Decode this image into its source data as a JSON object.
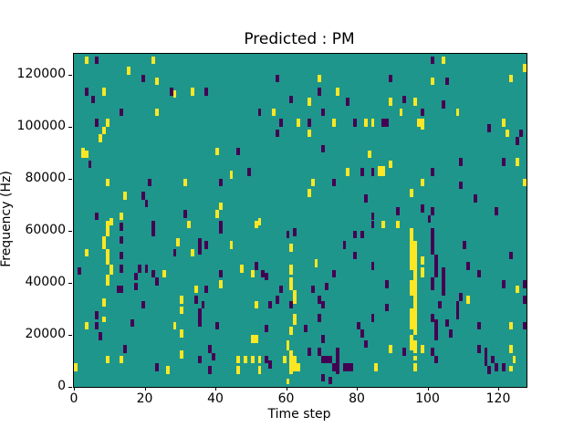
{
  "chart_data": {
    "type": "heatmap",
    "title": "Predicted : PM",
    "xlabel": "Time step",
    "ylabel": "Frequency (Hz)",
    "xlim": [
      0,
      128
    ],
    "ylim": [
      0,
      128000
    ],
    "grid": false,
    "legend": "none",
    "xtick_values": [
      0,
      20,
      40,
      60,
      80,
      100,
      120
    ],
    "xtick_labels": [
      "0",
      "20",
      "40",
      "60",
      "80",
      "100",
      "120"
    ],
    "ytick_values": [
      0,
      20000,
      40000,
      60000,
      80000,
      100000,
      120000
    ],
    "ytick_labels": [
      "0",
      "20000",
      "40000",
      "60000",
      "80000",
      "100000",
      "120000"
    ],
    "colors": {
      "background_value": "#1f968b",
      "high_value": "#fde725",
      "low_value": "#440154"
    },
    "cell_note": "cells are [time_step, freq_kHz_top, value(1=yellow,0=purple), rows(optional, default 3, 1 row = 1 kHz)]",
    "cells": [
      [
        3,
        127,
        1
      ],
      [
        6,
        127,
        0
      ],
      [
        22,
        127,
        1
      ],
      [
        15,
        123,
        1
      ],
      [
        19,
        120,
        0
      ],
      [
        23,
        119,
        1
      ],
      [
        3,
        115,
        0
      ],
      [
        8,
        115,
        1
      ],
      [
        27,
        115,
        0
      ],
      [
        28,
        114,
        1
      ],
      [
        5,
        112,
        0
      ],
      [
        13,
        107,
        0
      ],
      [
        23,
        107,
        1
      ],
      [
        6,
        103,
        0
      ],
      [
        9,
        103,
        1
      ],
      [
        8,
        100,
        1
      ],
      [
        7,
        97,
        1
      ],
      [
        2,
        92,
        1,
        4
      ],
      [
        3,
        91,
        1
      ],
      [
        4,
        87,
        0
      ],
      [
        9,
        80,
        1
      ],
      [
        21,
        80,
        0
      ],
      [
        31,
        80,
        1
      ],
      [
        14,
        75,
        1
      ],
      [
        19,
        75,
        0
      ],
      [
        20,
        72,
        0
      ],
      [
        6,
        67,
        0
      ],
      [
        13,
        67,
        1
      ],
      [
        31,
        68,
        0
      ],
      [
        10,
        65,
        1
      ],
      [
        57,
        120,
        0
      ],
      [
        33,
        115,
        1
      ],
      [
        37,
        115,
        0
      ],
      [
        61,
        112,
        0
      ],
      [
        52,
        107,
        0
      ],
      [
        56,
        107,
        1
      ],
      [
        63,
        103,
        1
      ],
      [
        58,
        103,
        0
      ],
      [
        57,
        99,
        0
      ],
      [
        40,
        92,
        1
      ],
      [
        46,
        92,
        0
      ],
      [
        44,
        83,
        1
      ],
      [
        49,
        84,
        0
      ],
      [
        41,
        80,
        0
      ],
      [
        41,
        71,
        1
      ],
      [
        40,
        68,
        1
      ],
      [
        52,
        65,
        1
      ],
      [
        69,
        120,
        1
      ],
      [
        89,
        120,
        0
      ],
      [
        69,
        115,
        0
      ],
      [
        74,
        115,
        1
      ],
      [
        66,
        111,
        1
      ],
      [
        77,
        111,
        0
      ],
      [
        89,
        111,
        1
      ],
      [
        93,
        112,
        0
      ],
      [
        96,
        111,
        1
      ],
      [
        70,
        107,
        0
      ],
      [
        92,
        107,
        1
      ],
      [
        66,
        103,
        0
      ],
      [
        73,
        103,
        1
      ],
      [
        79,
        103,
        0
      ],
      [
        82,
        103,
        1
      ],
      [
        84,
        103,
        1
      ],
      [
        87,
        103,
        0
      ],
      [
        88,
        103,
        0
      ],
      [
        97,
        103,
        1
      ],
      [
        66,
        99,
        1
      ],
      [
        70,
        93,
        0
      ],
      [
        83,
        91,
        1
      ],
      [
        89,
        87,
        1
      ],
      [
        77,
        84,
        1
      ],
      [
        81,
        84,
        0
      ],
      [
        84,
        84,
        0
      ],
      [
        86,
        85,
        1,
        4
      ],
      [
        87,
        85,
        1,
        4
      ],
      [
        67,
        80,
        1
      ],
      [
        73,
        80,
        0
      ],
      [
        66,
        76,
        1
      ],
      [
        82,
        74,
        0
      ],
      [
        91,
        69,
        0
      ],
      [
        95,
        76,
        1
      ],
      [
        84,
        67,
        0
      ],
      [
        87,
        64,
        1
      ],
      [
        101,
        127,
        0
      ],
      [
        104,
        127,
        1
      ],
      [
        127,
        124,
        1
      ],
      [
        101,
        119,
        1
      ],
      [
        105,
        119,
        0
      ],
      [
        123,
        120,
        1
      ],
      [
        104,
        110,
        0
      ],
      [
        98,
        107,
        0
      ],
      [
        98,
        103,
        1,
        4
      ],
      [
        108,
        107,
        1
      ],
      [
        117,
        101,
        0
      ],
      [
        121,
        103,
        1
      ],
      [
        122,
        99,
        1
      ],
      [
        126,
        99,
        0
      ],
      [
        125,
        96,
        0
      ],
      [
        109,
        88,
        0
      ],
      [
        121,
        88,
        0
      ],
      [
        125,
        88,
        1
      ],
      [
        101,
        84,
        0
      ],
      [
        98,
        80,
        1,
        3
      ],
      [
        127,
        80,
        1
      ],
      [
        109,
        79,
        0
      ],
      [
        113,
        74,
        0
      ],
      [
        98,
        70,
        0
      ],
      [
        101,
        69,
        0
      ],
      [
        119,
        69,
        0
      ],
      [
        100,
        66,
        0
      ],
      [
        9,
        64,
        1,
        6
      ],
      [
        8,
        58,
        1,
        5
      ],
      [
        9,
        53,
        1,
        6
      ],
      [
        10,
        47,
        1,
        4
      ],
      [
        9,
        43,
        1,
        4
      ],
      [
        8,
        34,
        1,
        3
      ],
      [
        8,
        27,
        1,
        2
      ],
      [
        9,
        12,
        1
      ],
      [
        22,
        64,
        0,
        6
      ],
      [
        13,
        63,
        0,
        3
      ],
      [
        13,
        58,
        0,
        3
      ],
      [
        13,
        52,
        0,
        3
      ],
      [
        13,
        47,
        0,
        3
      ],
      [
        3,
        53,
        1
      ],
      [
        1,
        46,
        0
      ],
      [
        18,
        47,
        0
      ],
      [
        20,
        47,
        0
      ],
      [
        17,
        44,
        0,
        3
      ],
      [
        17,
        40,
        0,
        3
      ],
      [
        22,
        45,
        0
      ],
      [
        25,
        45,
        1
      ],
      [
        23,
        42,
        0
      ],
      [
        12,
        39,
        0
      ],
      [
        13,
        39,
        0
      ],
      [
        6,
        29,
        0
      ],
      [
        6,
        25,
        0
      ],
      [
        3,
        25,
        1
      ],
      [
        7,
        21,
        0
      ],
      [
        19,
        33,
        0
      ],
      [
        16,
        26,
        0
      ],
      [
        14,
        16,
        0
      ],
      [
        13,
        12,
        1
      ],
      [
        0,
        9,
        1
      ],
      [
        23,
        9,
        0
      ],
      [
        26,
        8,
        1
      ],
      [
        30,
        14,
        1
      ],
      [
        28,
        25,
        1
      ],
      [
        30,
        22,
        1
      ],
      [
        30,
        35,
        1
      ],
      [
        30,
        31,
        1
      ],
      [
        29,
        57,
        1
      ],
      [
        28,
        53,
        0
      ],
      [
        32,
        64,
        1
      ],
      [
        41,
        64,
        0,
        5
      ],
      [
        51,
        64,
        1
      ],
      [
        35,
        57,
        0,
        6
      ],
      [
        37,
        56,
        0
      ],
      [
        33,
        53,
        1
      ],
      [
        44,
        56,
        1
      ],
      [
        60,
        60,
        0
      ],
      [
        62,
        61,
        0
      ],
      [
        61,
        55,
        1
      ],
      [
        47,
        47,
        1
      ],
      [
        51,
        48,
        0
      ],
      [
        50,
        45,
        1
      ],
      [
        53,
        45,
        0
      ],
      [
        54,
        44,
        0
      ],
      [
        41,
        45,
        0
      ],
      [
        41,
        41,
        1
      ],
      [
        34,
        39,
        1
      ],
      [
        37,
        39,
        0
      ],
      [
        58,
        39,
        0
      ],
      [
        57,
        35,
        0
      ],
      [
        34,
        35,
        0
      ],
      [
        36,
        33,
        0
      ],
      [
        51,
        33,
        1
      ],
      [
        55,
        33,
        0
      ],
      [
        35,
        30,
        0,
        7
      ],
      [
        40,
        25,
        0
      ],
      [
        54,
        24,
        0
      ],
      [
        50,
        20,
        1
      ],
      [
        51,
        20,
        1
      ],
      [
        38,
        16,
        0
      ],
      [
        39,
        13,
        0
      ],
      [
        35,
        12,
        0
      ],
      [
        38,
        8,
        0
      ],
      [
        46,
        12,
        1
      ],
      [
        46,
        8,
        1
      ],
      [
        48,
        12,
        1
      ],
      [
        50,
        12,
        1
      ],
      [
        52,
        12,
        1
      ],
      [
        52,
        8,
        1
      ],
      [
        54,
        12,
        0
      ],
      [
        55,
        10,
        0
      ],
      [
        61,
        47,
        1,
        4
      ],
      [
        61,
        42,
        1,
        5
      ],
      [
        62,
        37,
        1,
        5
      ],
      [
        61,
        33,
        0
      ],
      [
        62,
        28,
        1,
        4
      ],
      [
        61,
        23,
        1,
        3
      ],
      [
        60,
        18,
        1,
        4
      ],
      [
        61,
        14,
        1,
        9
      ],
      [
        62,
        12,
        1,
        6
      ],
      [
        59,
        12,
        1,
        3
      ],
      [
        60,
        3,
        1,
        2
      ],
      [
        63,
        9,
        1
      ],
      [
        95,
        61,
        1,
        8
      ],
      [
        96,
        56,
        1,
        10
      ],
      [
        95,
        53,
        1,
        8
      ],
      [
        96,
        46,
        1,
        8
      ],
      [
        95,
        41,
        1,
        6
      ],
      [
        96,
        38,
        1,
        10
      ],
      [
        95,
        30,
        1,
        8
      ],
      [
        96,
        28,
        1,
        8
      ],
      [
        95,
        20,
        1,
        6
      ],
      [
        96,
        18,
        1,
        5
      ],
      [
        96,
        12,
        1,
        2
      ],
      [
        96,
        9,
        1
      ],
      [
        91,
        64,
        1,
        3
      ],
      [
        84,
        64,
        0
      ],
      [
        79,
        60,
        0
      ],
      [
        81,
        60,
        0
      ],
      [
        76,
        56,
        0
      ],
      [
        79,
        52,
        0
      ],
      [
        84,
        48,
        0
      ],
      [
        68,
        49,
        1
      ],
      [
        73,
        45,
        0
      ],
      [
        67,
        39,
        0
      ],
      [
        71,
        40,
        0
      ],
      [
        69,
        35,
        0
      ],
      [
        70,
        33,
        0
      ],
      [
        88,
        41,
        0
      ],
      [
        88,
        32,
        0
      ],
      [
        69,
        28,
        0
      ],
      [
        84,
        28,
        0
      ],
      [
        65,
        24,
        0
      ],
      [
        70,
        20,
        0
      ],
      [
        80,
        25,
        0
      ],
      [
        81,
        22,
        0
      ],
      [
        82,
        18,
        0
      ],
      [
        66,
        15,
        0
      ],
      [
        69,
        15,
        0
      ],
      [
        70,
        12,
        0
      ],
      [
        71,
        12,
        0
      ],
      [
        72,
        12,
        0
      ],
      [
        74,
        15,
        0
      ],
      [
        74,
        13,
        0,
        8
      ],
      [
        73,
        9,
        0
      ],
      [
        76,
        9,
        0
      ],
      [
        77,
        9,
        0
      ],
      [
        78,
        9,
        0
      ],
      [
        70,
        5,
        0
      ],
      [
        72,
        4,
        0
      ],
      [
        85,
        9,
        1
      ],
      [
        89,
        16,
        1
      ],
      [
        93,
        15,
        0
      ],
      [
        101,
        61,
        0,
        5
      ],
      [
        101,
        56,
        0,
        5
      ],
      [
        102,
        51,
        0,
        5
      ],
      [
        102,
        46,
        0,
        4
      ],
      [
        101,
        42,
        0,
        5
      ],
      [
        104,
        46,
        0,
        4
      ],
      [
        104,
        42,
        0,
        5
      ],
      [
        104,
        37,
        0,
        2
      ],
      [
        98,
        50,
        1,
        3
      ],
      [
        98,
        46,
        1,
        4
      ],
      [
        110,
        56,
        0
      ],
      [
        111,
        48,
        0
      ],
      [
        114,
        45,
        0
      ],
      [
        123,
        52,
        0
      ],
      [
        121,
        41,
        0
      ],
      [
        125,
        39,
        1
      ],
      [
        127,
        41,
        0
      ],
      [
        127,
        35,
        0
      ],
      [
        111,
        35,
        1
      ],
      [
        109,
        36,
        0
      ],
      [
        103,
        33,
        0
      ],
      [
        108,
        33,
        0,
        7
      ],
      [
        101,
        28,
        0
      ],
      [
        102,
        26,
        0,
        8
      ],
      [
        105,
        26,
        0
      ],
      [
        106,
        22,
        0
      ],
      [
        114,
        25,
        0
      ],
      [
        123,
        25,
        1
      ],
      [
        127,
        25,
        0
      ],
      [
        98,
        16,
        1
      ],
      [
        101,
        15,
        0
      ],
      [
        102,
        12,
        0
      ],
      [
        114,
        16,
        0
      ],
      [
        116,
        15,
        0,
        7
      ],
      [
        118,
        12,
        0
      ],
      [
        119,
        9,
        0
      ],
      [
        121,
        9,
        0
      ],
      [
        123,
        16,
        1
      ],
      [
        124,
        12,
        1
      ],
      [
        123,
        8,
        1,
        2
      ],
      [
        117,
        8,
        0
      ]
    ]
  }
}
